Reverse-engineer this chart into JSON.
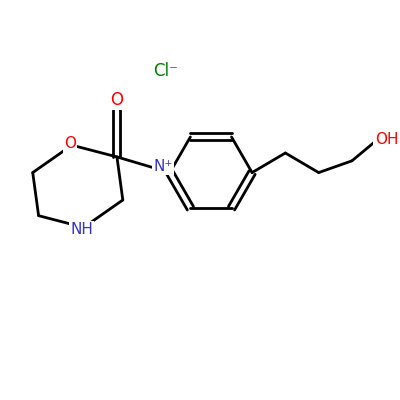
{
  "background_color": "#ffffff",
  "bond_color": "#000000",
  "line_width": 2.0,
  "O_color": "#ff0000",
  "NH_color": "#3333cc",
  "Cl_color": "#008000",
  "OH_color": "#ff0000",
  "Nplus_color": "#3333cc",
  "Cl_label": "Cl⁻",
  "OH_label": "OH",
  "Nplus_label": "N⁺",
  "NH_label": "NH",
  "O_label": "O",
  "fig_width": 4.0,
  "fig_height": 4.0,
  "dpi": 100
}
